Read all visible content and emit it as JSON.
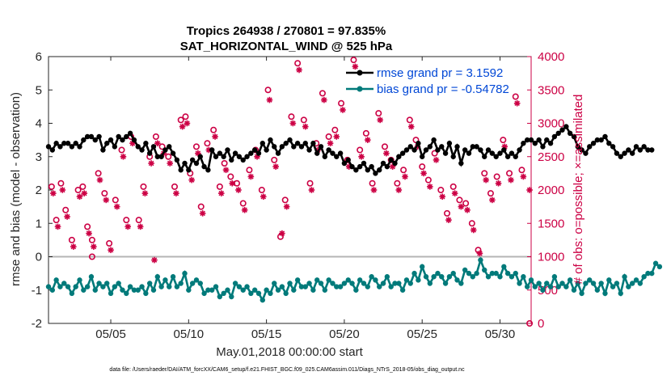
{
  "chart_data": {
    "type": "line",
    "title_line1": "Tropics 264938 / 270801 = 97.835%",
    "title_line2": "SAT_HORIZONTAL_WIND @ 525 hPa",
    "xlabel": "May.01,2018 00:00:00 start",
    "ylabel_left": "rmse and bias (model - observation)",
    "ylabel_right": "# of obs: o=possible; ×=assimilated",
    "xlim": [
      1,
      32
    ],
    "ylim_left": [
      -2,
      6
    ],
    "ylim_right": [
      0,
      4000
    ],
    "x_ticks": [
      5,
      10,
      15,
      20,
      25,
      30
    ],
    "x_tick_labels": [
      "05/05",
      "05/10",
      "05/15",
      "05/20",
      "05/25",
      "05/30"
    ],
    "y_ticks_left": [
      "-2",
      "-1",
      "0",
      "1",
      "2",
      "3",
      "4",
      "5",
      "6"
    ],
    "y_ticks_right": [
      "0",
      "500",
      "1000",
      "1500",
      "2000",
      "2500",
      "3000",
      "3500",
      "4000"
    ],
    "zero_line": 0,
    "legend": [
      {
        "label": "rmse grand pr = 3.1592",
        "color": "#000000"
      },
      {
        "label": "bias grand pr = -0.54782",
        "color": "#007a7a"
      }
    ],
    "series": [
      {
        "name": "rmse",
        "color": "#000000",
        "x_start": 1.0,
        "x_step": 0.25,
        "values": [
          3.3,
          3.2,
          3.4,
          3.3,
          3.4,
          3.4,
          3.3,
          3.4,
          3.3,
          3.5,
          3.6,
          3.6,
          3.5,
          3.6,
          3.2,
          3.4,
          3.5,
          3.3,
          3.6,
          3.5,
          3.6,
          3.7,
          3.5,
          3.3,
          3.2,
          3.4,
          3.1,
          3.3,
          3.0,
          3.0,
          3.2,
          3.3,
          3.1,
          2.9,
          2.6,
          2.8,
          2.6,
          2.9,
          2.8,
          3.0,
          2.7,
          2.6,
          3.2,
          3.0,
          3.1,
          3.0,
          3.2,
          2.9,
          3.1,
          3.0,
          2.9,
          3.0,
          3.1,
          3.2,
          3.1,
          3.4,
          3.2,
          3.5,
          3.3,
          3.1,
          3.3,
          3.4,
          3.5,
          3.3,
          3.4,
          3.3,
          3.4,
          3.2,
          3.4,
          3.1,
          3.3,
          3.0,
          3.2,
          3.1,
          3.0,
          3.1,
          2.8,
          2.9,
          2.7,
          2.6,
          2.7,
          2.8,
          2.6,
          2.7,
          2.5,
          2.6,
          2.8,
          2.7,
          2.9,
          2.8,
          3.0,
          3.1,
          3.2,
          3.3,
          3.2,
          3.4,
          3.0,
          3.2,
          3.3,
          3.5,
          3.2,
          3.3,
          3.1,
          3.4,
          3.0,
          3.3,
          2.8,
          3.2,
          3.1,
          3.3,
          3.3,
          3.2,
          3.0,
          3.2,
          3.1,
          3.0,
          3.1,
          3.2,
          3.0,
          3.1,
          3.0,
          3.2,
          3.4,
          3.5,
          3.5,
          3.4,
          3.5,
          3.3,
          3.5,
          3.4,
          3.6,
          3.7,
          3.8,
          3.9,
          3.7,
          3.6,
          3.3,
          3.2,
          3.1,
          3.3,
          3.4,
          3.5,
          3.5,
          3.6,
          3.4,
          3.3,
          3.1,
          3.0,
          3.1,
          3.2,
          3.1,
          3.3,
          3.2,
          3.3,
          3.2,
          3.2
        ]
      },
      {
        "name": "bias",
        "color": "#007a7a",
        "x_start": 1.0,
        "x_step": 0.25,
        "values": [
          -0.9,
          -1.0,
          -0.7,
          -0.9,
          -0.8,
          -0.9,
          -1.1,
          -0.9,
          -0.7,
          -1.0,
          -0.9,
          -0.6,
          -1.0,
          -0.8,
          -0.9,
          -0.8,
          -1.1,
          -0.9,
          -0.8,
          -1.0,
          -1.1,
          -0.9,
          -1.0,
          -1.0,
          -0.9,
          -1.1,
          -0.8,
          -1.0,
          -0.6,
          -0.9,
          -0.7,
          -0.9,
          -0.6,
          -0.9,
          -0.8,
          -0.5,
          -1.0,
          -0.8,
          -0.7,
          -0.8,
          -1.1,
          -1.0,
          -1.0,
          -0.9,
          -1.2,
          -1.1,
          -1.0,
          -1.2,
          -0.8,
          -0.9,
          -1.0,
          -0.9,
          -1.1,
          -1.0,
          -1.1,
          -1.3,
          -1.0,
          -1.1,
          -0.8,
          -1.0,
          -0.9,
          -1.1,
          -0.8,
          -1.0,
          -0.7,
          -0.9,
          -0.9,
          -0.8,
          -1.0,
          -0.7,
          -0.8,
          -1.0,
          -0.7,
          -0.8,
          -0.9,
          -0.9,
          -0.8,
          -0.7,
          -0.8,
          -1.0,
          -0.7,
          -0.8,
          -0.9,
          -0.6,
          -0.7,
          -0.9,
          -0.8,
          -0.6,
          -0.9,
          -0.8,
          -0.8,
          -1.0,
          -0.7,
          -0.8,
          -0.5,
          -0.7,
          -0.3,
          -0.6,
          -0.8,
          -0.6,
          -0.5,
          -0.6,
          -0.8,
          -0.6,
          -0.5,
          -0.7,
          -0.8,
          -0.4,
          -0.5,
          -0.6,
          -0.5,
          -0.1,
          -0.4,
          -0.6,
          -0.5,
          -0.5,
          -0.6,
          -0.3,
          -0.5,
          -0.6,
          -0.5,
          -0.8,
          -0.6,
          -0.9,
          -0.7,
          -0.9,
          -0.8,
          -1.0,
          -0.8,
          -0.9,
          -0.6,
          -0.9,
          -0.8,
          -0.9,
          -0.7,
          -1.0,
          -0.8,
          -1.1,
          -0.8,
          -0.7,
          -0.8,
          -1.0,
          -0.8,
          -1.1,
          -0.7,
          -0.9,
          -0.8,
          -1.1,
          -0.6,
          -0.9,
          -0.8,
          -0.7,
          -0.8,
          -0.6,
          -0.5,
          -0.5,
          -0.2,
          -0.3
        ]
      },
      {
        "name": "obs_possible",
        "color": "#cc0044",
        "marker": "circle",
        "axis": "right",
        "x": [
          1.2,
          1.5,
          1.8,
          2.1,
          2.5,
          2.9,
          3.2,
          3.5,
          3.8,
          4.2,
          4.6,
          4.9,
          5.3,
          5.7,
          6.0,
          6.3,
          6.8,
          7.1,
          7.5,
          7.9,
          8.3,
          8.7,
          9.1,
          9.5,
          9.8,
          10.1,
          10.5,
          10.8,
          11.2,
          11.6,
          12.0,
          12.3,
          12.7,
          13.1,
          13.5,
          13.9,
          14.3,
          14.7,
          15.1,
          15.5,
          15.9,
          16.2,
          16.6,
          17.0,
          17.4,
          17.8,
          18.2,
          18.6,
          19.0,
          19.4,
          19.8,
          20.2,
          20.6,
          21.0,
          21.4,
          21.8,
          22.2,
          22.6,
          23.0,
          23.4,
          23.8,
          24.2,
          24.6,
          25.0,
          25.4,
          25.8,
          26.2,
          26.6,
          27.0,
          27.4,
          27.8,
          28.2,
          28.6,
          29.0,
          29.4,
          29.8,
          30.2,
          30.6,
          31.0,
          31.4
        ],
        "values": [
          2050,
          1550,
          2100,
          1700,
          1250,
          2000,
          2050,
          1450,
          1250,
          2250,
          1950,
          1200,
          1850,
          2600,
          1550,
          2800,
          1550,
          2050,
          2500,
          2800,
          2650,
          2500,
          2050,
          3050,
          3100,
          2250,
          2650,
          1750,
          2700,
          2900,
          2050,
          2400,
          2200,
          2100,
          1800,
          2300,
          2600,
          2000,
          3500,
          2450,
          1300,
          1850,
          3100,
          3900,
          3050,
          2100,
          2700,
          3450,
          2800,
          2900,
          3300,
          2450,
          3950,
          2600,
          2850,
          2100,
          3150,
          2650,
          2450,
          2100,
          2300,
          3050,
          2750,
          2350,
          2150,
          2550,
          2000,
          1650,
          2050,
          1850,
          1800,
          1500,
          1100,
          2250,
          1950,
          2200,
          2750,
          2250,
          3400,
          2300
        ]
      },
      {
        "name": "obs_assimilated",
        "color": "#cc0044",
        "marker": "asterisk",
        "axis": "right",
        "x": [
          1.3,
          1.6,
          1.9,
          2.2,
          2.6,
          3.0,
          3.3,
          3.6,
          3.9,
          4.3,
          4.7,
          5.0,
          5.4,
          5.8,
          6.1,
          6.4,
          6.9,
          7.2,
          7.6,
          8.0,
          8.4,
          8.8,
          9.2,
          9.6,
          9.9,
          10.2,
          10.6,
          10.9,
          11.3,
          11.7,
          12.1,
          12.4,
          12.8,
          13.2,
          13.6,
          14.0,
          14.4,
          14.8,
          15.2,
          15.6,
          16.0,
          16.3,
          16.7,
          17.1,
          17.5,
          17.9,
          18.3,
          18.7,
          19.1,
          19.5,
          19.9,
          20.3,
          20.7,
          21.1,
          21.5,
          21.9,
          22.3,
          22.7,
          23.1,
          23.5,
          23.9,
          24.3,
          24.7,
          25.1,
          25.5,
          25.9,
          26.3,
          26.7,
          27.1,
          27.5,
          27.9,
          28.3,
          28.7,
          29.1,
          29.5,
          29.9,
          30.3,
          30.7,
          31.1,
          31.5,
          31.9
        ],
        "values": [
          1950,
          1450,
          2000,
          1600,
          1150,
          1900,
          1950,
          1350,
          1150,
          2150,
          1850,
          1100,
          1750,
          2500,
          1450,
          2700,
          1450,
          1950,
          2400,
          2700,
          2550,
          2400,
          1950,
          2950,
          3000,
          2150,
          2550,
          1650,
          2600,
          2800,
          1950,
          2300,
          2100,
          2000,
          1700,
          2200,
          2500,
          1900,
          3350,
          2350,
          1350,
          1750,
          3000,
          3800,
          2950,
          2000,
          2600,
          3350,
          2700,
          2800,
          3200,
          2350,
          3850,
          2500,
          2750,
          2000,
          3050,
          2550,
          2350,
          2000,
          2200,
          2950,
          2650,
          2250,
          2050,
          2450,
          1900,
          1550,
          1950,
          1750,
          1700,
          1400,
          1050,
          2150,
          1850,
          2100,
          2650,
          2150,
          3300,
          2200,
          2000
        ]
      }
    ],
    "orphan_marks": [
      {
        "x": 3.8,
        "value": 1000,
        "marker": "circle"
      },
      {
        "x": 7.8,
        "value": 950,
        "marker": "asterisk"
      },
      {
        "x": 31.9,
        "value": 0,
        "marker": "circle"
      }
    ]
  },
  "footer": "data file: /Users/raeder/DAI/ATM_forcXX/CAM6_setup/f.e21.FHIST_BGC.f09_025.CAM6assim.011/Diags_NTrS_2018-05/obs_diag_output.nc"
}
